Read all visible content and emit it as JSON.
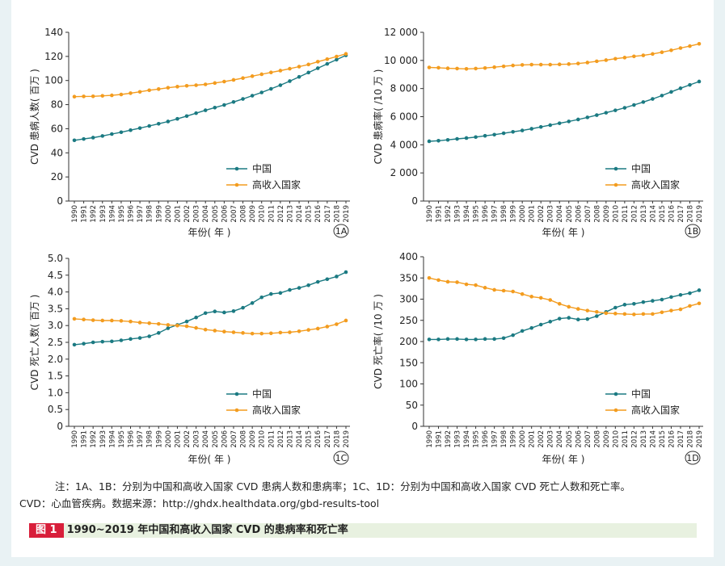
{
  "years": [
    "1990",
    "1991",
    "1992",
    "1993",
    "1994",
    "1995",
    "1996",
    "1997",
    "1998",
    "1999",
    "2000",
    "2001",
    "2002",
    "2003",
    "2004",
    "2005",
    "2006",
    "2007",
    "2008",
    "2009",
    "2010",
    "2011",
    "2012",
    "2013",
    "2014",
    "2015",
    "2016",
    "2017",
    "2018",
    "2019"
  ],
  "colors": {
    "china": "#1b7a82",
    "high_income": "#f39c1f"
  },
  "chart_data": [
    {
      "id": "1A",
      "type": "line",
      "ylabel": "CVD 患病人数( 百万 )",
      "xlabel": "年份( 年 )",
      "ylim": [
        0,
        140
      ],
      "yticks": [
        0,
        20,
        40,
        60,
        80,
        100,
        120,
        140
      ],
      "ytick_labels": [
        "0",
        "20",
        "40",
        "60",
        "80",
        "100",
        "120",
        "140"
      ],
      "legend_position": "right-middle",
      "series": [
        {
          "name": "中国",
          "values": [
            50.4,
            51.5,
            52.6,
            54,
            55.6,
            57.1,
            58.8,
            60.5,
            62.3,
            64.1,
            66,
            68.2,
            70.5,
            72.9,
            75.3,
            77.5,
            79.7,
            82.2,
            84.7,
            87.4,
            90.1,
            93.1,
            96.1,
            99.5,
            103,
            106.6,
            110.2,
            113.8,
            117.3,
            120.9
          ]
        },
        {
          "name": "高收入国家",
          "values": [
            86.6,
            86.8,
            86.9,
            87.3,
            87.7,
            88.4,
            89.5,
            90.6,
            91.9,
            92.9,
            94,
            94.9,
            95.6,
            96.1,
            96.8,
            97.9,
            99.1,
            100.5,
            102,
            103.6,
            105.2,
            106.7,
            108.2,
            109.8,
            111.5,
            113.3,
            115.6,
            117.7,
            119.9,
            122.1
          ]
        }
      ]
    },
    {
      "id": "1B",
      "type": "line",
      "ylabel": "CVD 患病率( /10 万 )",
      "xlabel": "年份( 年 )",
      "ylim": [
        0,
        12000
      ],
      "yticks": [
        0,
        2000,
        4000,
        6000,
        8000,
        10000,
        12000
      ],
      "ytick_labels": [
        "0",
        "2 000",
        "4 000",
        "6 000",
        "8 000",
        "10 000",
        "12 000"
      ],
      "legend_position": "right-middle",
      "series": [
        {
          "name": "中国",
          "values": [
            4250,
            4290,
            4350,
            4420,
            4480,
            4550,
            4640,
            4720,
            4820,
            4920,
            5020,
            5140,
            5270,
            5400,
            5530,
            5660,
            5800,
            5950,
            6110,
            6280,
            6450,
            6630,
            6830,
            7040,
            7260,
            7500,
            7760,
            8020,
            8260,
            8500
          ]
        },
        {
          "name": "高收入国家",
          "values": [
            9500,
            9480,
            9440,
            9420,
            9400,
            9420,
            9460,
            9520,
            9580,
            9640,
            9680,
            9700,
            9700,
            9700,
            9720,
            9740,
            9780,
            9850,
            9940,
            10020,
            10120,
            10200,
            10290,
            10360,
            10460,
            10580,
            10720,
            10880,
            11020,
            11180
          ]
        }
      ]
    },
    {
      "id": "1C",
      "type": "line",
      "ylabel": "CVD 死亡人数( 百万 )",
      "xlabel": "年份( 年 )",
      "ylim": [
        0,
        5.0
      ],
      "yticks": [
        0,
        0.5,
        1.0,
        1.5,
        2.0,
        2.5,
        3.0,
        3.5,
        4.0,
        4.5,
        5.0
      ],
      "ytick_labels": [
        "0",
        "0.5",
        "1.0",
        "1.5",
        "2.0",
        "2.5",
        "3.0",
        "3.5",
        "4.0",
        "4.5",
        "5.0"
      ],
      "legend_position": "right-middle",
      "series": [
        {
          "name": "中国",
          "values": [
            2.43,
            2.46,
            2.5,
            2.52,
            2.53,
            2.56,
            2.6,
            2.63,
            2.68,
            2.78,
            2.92,
            3.02,
            3.12,
            3.24,
            3.37,
            3.42,
            3.39,
            3.43,
            3.53,
            3.67,
            3.84,
            3.94,
            3.97,
            4.06,
            4.12,
            4.2,
            4.3,
            4.38,
            4.46,
            4.59
          ]
        },
        {
          "name": "高收入国家",
          "values": [
            3.2,
            3.18,
            3.16,
            3.15,
            3.15,
            3.14,
            3.12,
            3.09,
            3.07,
            3.05,
            3.02,
            3,
            2.98,
            2.93,
            2.88,
            2.85,
            2.82,
            2.8,
            2.78,
            2.76,
            2.76,
            2.77,
            2.79,
            2.8,
            2.83,
            2.87,
            2.91,
            2.97,
            3.04,
            3.15
          ]
        }
      ]
    },
    {
      "id": "1D",
      "type": "line",
      "ylabel": "CVD 死亡率( /10 万 )",
      "xlabel": "年份( 年 )",
      "ylim": [
        0,
        400
      ],
      "yticks": [
        0,
        50,
        100,
        150,
        200,
        250,
        300,
        350,
        400
      ],
      "ytick_labels": [
        "0",
        "50",
        "100",
        "150",
        "200",
        "250",
        "300",
        "350",
        "400"
      ],
      "legend_position": "right-bottom",
      "series": [
        {
          "name": "中国",
          "values": [
            205,
            205,
            206,
            206,
            205,
            205,
            206,
            206,
            208,
            215,
            225,
            232,
            240,
            247,
            254,
            256,
            252,
            253,
            260,
            270,
            280,
            287,
            289,
            293,
            296,
            299,
            305,
            310,
            314,
            321
          ]
        },
        {
          "name": "高收入国家",
          "values": [
            350,
            345,
            341,
            340,
            335,
            333,
            327,
            322,
            320,
            318,
            312,
            306,
            303,
            298,
            289,
            282,
            277,
            273,
            270,
            267,
            266,
            265,
            264,
            265,
            265,
            269,
            273,
            276,
            284,
            290
          ]
        }
      ]
    }
  ],
  "note": {
    "line1": "注：1A、1B：分别为中国和高收入国家 CVD 患病人数和患病率；1C、1D：分别为中国和高收入国家 CVD 死亡人数和死亡率。",
    "line2": "CVD：心血管疾病。数据来源：http://ghdx.healthdata.org/gbd-results-tool"
  },
  "caption": {
    "label": "图 1",
    "title": "1990~2019 年中国和高收入国家 CVD 的患病率和死亡率"
  }
}
